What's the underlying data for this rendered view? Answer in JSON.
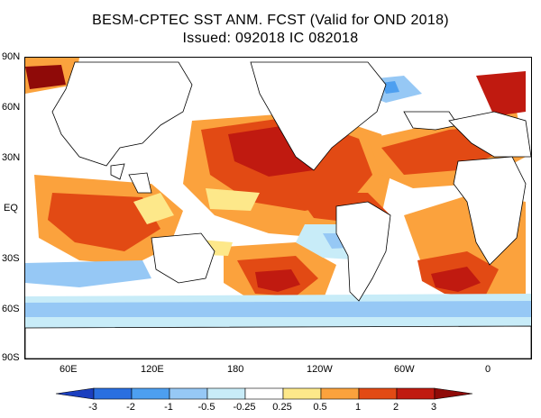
{
  "title": {
    "line1": "BESM-CPTEC SST ANM. FCST  (Valid for OND 2018)",
    "line2": "Issued:  092018 IC 082018"
  },
  "map": {
    "lat_labels": [
      "90N",
      "60N",
      "30N",
      "EQ",
      "30S",
      "60S",
      "90S"
    ],
    "lon_labels": [
      "60E",
      "120E",
      "180",
      "120W",
      "60W",
      "0"
    ]
  },
  "colorbar": {
    "levels": [
      "-3",
      "-2",
      "-1",
      "-0.5",
      "-0.25",
      "0.25",
      "0.5",
      "1",
      "2",
      "3"
    ],
    "colors": [
      "#1b3fbf",
      "#2a6fe0",
      "#4d9ff0",
      "#96c8f5",
      "#c8ecf8",
      "#ffffff",
      "#fde88a",
      "#fba23d",
      "#e24a14",
      "#c01a10",
      "#8f0a08"
    ]
  },
  "colors": {
    "warm_strong": "#c01a10",
    "warm_mid": "#e24a14",
    "warm_light": "#fba23d",
    "warm_pale": "#fde88a",
    "cool_pale": "#c8ecf8",
    "cool_light": "#96c8f5",
    "cool_mid": "#4d9ff0",
    "land": "#ffffff"
  }
}
